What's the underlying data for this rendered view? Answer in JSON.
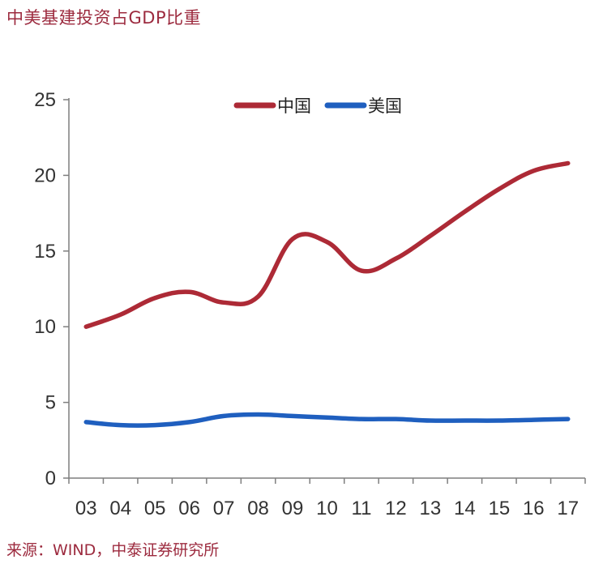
{
  "title": "中美基建投资占GDP比重",
  "source": "来源：WIND，中泰证券研究所",
  "chart_data": {
    "type": "line",
    "title": "",
    "xlabel": "",
    "ylabel": "",
    "ylim": [
      0,
      25
    ],
    "yticks": [
      0,
      5,
      10,
      15,
      20,
      25
    ],
    "categories": [
      "03",
      "04",
      "05",
      "06",
      "07",
      "08",
      "09",
      "10",
      "11",
      "12",
      "13",
      "14",
      "15",
      "16",
      "17"
    ],
    "grid": false,
    "legend_position": "top-center",
    "series": [
      {
        "name": "中国",
        "color": "#ad2a36",
        "values": [
          10.0,
          10.8,
          11.9,
          12.3,
          11.6,
          12.0,
          15.8,
          15.6,
          13.7,
          14.5,
          16.0,
          17.6,
          19.1,
          20.3,
          20.8
        ]
      },
      {
        "name": "美国",
        "color": "#1f5fbf",
        "values": [
          3.7,
          3.5,
          3.5,
          3.7,
          4.1,
          4.2,
          4.1,
          4.0,
          3.9,
          3.9,
          3.8,
          3.8,
          3.8,
          3.85,
          3.9
        ]
      }
    ]
  }
}
